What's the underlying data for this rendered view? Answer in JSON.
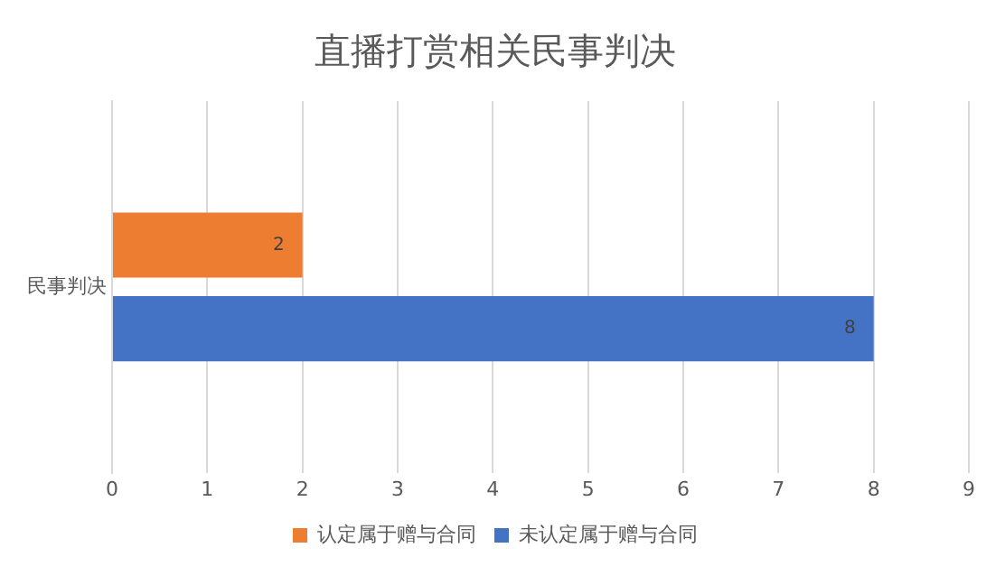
{
  "chart_data": {
    "type": "bar",
    "title": "直播打赏相关民事判决",
    "orientation": "horizontal",
    "categories": [
      "民事判决"
    ],
    "series": [
      {
        "name": "未认定属于赠与合同",
        "color": "#4472c4",
        "values": [
          8
        ]
      },
      {
        "name": "认定属于赠与合同",
        "color": "#ed7d31",
        "values": [
          2
        ]
      }
    ],
    "xlim": [
      0,
      9
    ],
    "xticks": [
      0,
      1,
      2,
      3,
      4,
      5,
      6,
      7,
      8,
      9
    ],
    "grid": "x",
    "legend": "bottom",
    "data_labels": true
  }
}
